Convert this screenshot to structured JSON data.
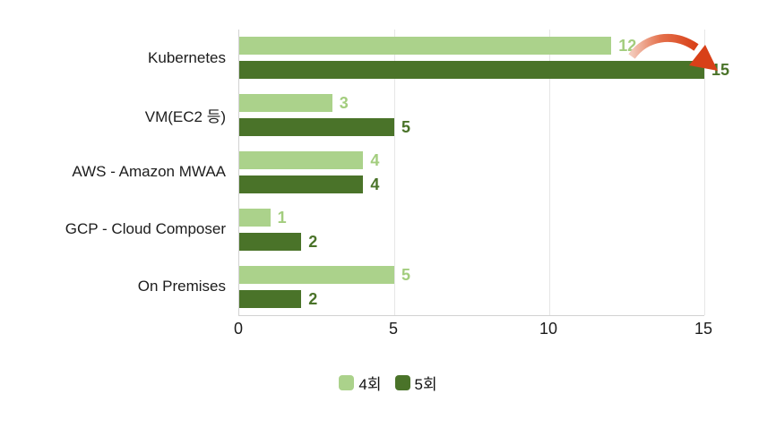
{
  "chart_data": {
    "type": "bar",
    "orientation": "horizontal",
    "title": "",
    "xlabel": "",
    "ylabel": "",
    "categories": [
      "Kubernetes",
      "VM(EC2 등)",
      "AWS - Amazon MWAA",
      "GCP - Cloud Composer",
      "On Premises"
    ],
    "series": [
      {
        "name": "4회",
        "color": "#abd28b",
        "label_color": "#a3cd7e",
        "values": [
          12,
          3,
          4,
          1,
          5
        ]
      },
      {
        "name": "5회",
        "color": "#4a7329",
        "label_color": "#4a7329",
        "values": [
          15,
          5,
          4,
          2,
          2
        ]
      }
    ],
    "xlim": [
      0,
      15
    ],
    "x_ticks": [
      0,
      5,
      10,
      15
    ],
    "grid": "vertical-gridlines at 5, 10, 15",
    "legend_position": "bottom-center",
    "annotation": {
      "type": "increase-arrow",
      "description": "red curved arrow from Kubernetes 4회 value (12) to end of Kubernetes 5회 bar (15)",
      "color_tail": "#f3c9ba",
      "color_head": "#d84018"
    },
    "colors": {
      "axis_line": "#d2d2d2",
      "gridline": "#e6e6e6",
      "text": "#1c1c1c",
      "background": "#ffffff"
    }
  }
}
